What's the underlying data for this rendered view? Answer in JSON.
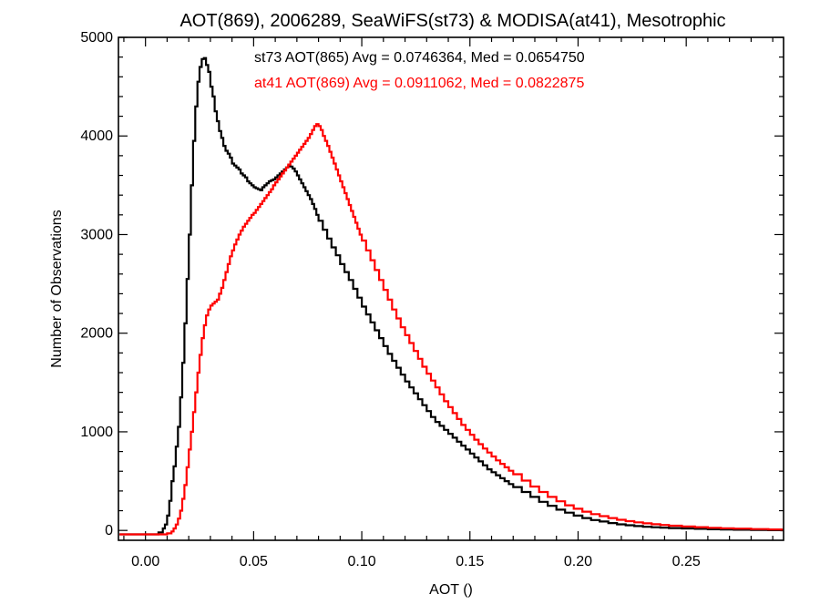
{
  "chart_data": {
    "type": "line",
    "title": "AOT(869), 2006289, SeaWiFS(st73) & MODISA(at41), Mesotrophic",
    "xlabel": "AOT ()",
    "ylabel": "Number of Observations",
    "xlim": [
      -0.0125,
      0.295
    ],
    "ylim": [
      -100,
      5000
    ],
    "xticks": [
      0.0,
      0.05,
      0.1,
      0.15,
      0.2,
      0.25
    ],
    "xtick_labels": [
      "0.00",
      "0.05",
      "0.10",
      "0.15",
      "0.20",
      "0.25"
    ],
    "yticks": [
      0,
      1000,
      2000,
      3000,
      4000,
      5000
    ],
    "ytick_labels": [
      "0",
      "1000",
      "2000",
      "3000",
      "4000",
      "5000"
    ],
    "annotations": [
      {
        "text": "st73 AOT(865) Avg = 0.0746364, Med = 0.0654750",
        "color": "#000000"
      },
      {
        "text": "at41 AOT(869) Avg = 0.0911062, Med = 0.0822875",
        "color": "#ff0000"
      }
    ],
    "series": [
      {
        "name": "st73",
        "color": "#000000",
        "points": [
          [
            -0.012,
            -40
          ],
          [
            0.004,
            -40
          ],
          [
            0.006,
            -20
          ],
          [
            0.008,
            20
          ],
          [
            0.009,
            60
          ],
          [
            0.01,
            150
          ],
          [
            0.011,
            300
          ],
          [
            0.012,
            500
          ],
          [
            0.013,
            650
          ],
          [
            0.014,
            850
          ],
          [
            0.015,
            1050
          ],
          [
            0.016,
            1350
          ],
          [
            0.017,
            1700
          ],
          [
            0.018,
            2100
          ],
          [
            0.019,
            2550
          ],
          [
            0.02,
            3000
          ],
          [
            0.021,
            3500
          ],
          [
            0.022,
            3950
          ],
          [
            0.023,
            4300
          ],
          [
            0.024,
            4550
          ],
          [
            0.025,
            4700
          ],
          [
            0.026,
            4780
          ],
          [
            0.027,
            4790
          ],
          [
            0.028,
            4720
          ],
          [
            0.029,
            4650
          ],
          [
            0.03,
            4500
          ],
          [
            0.031,
            4400
          ],
          [
            0.032,
            4250
          ],
          [
            0.033,
            4150
          ],
          [
            0.034,
            4050
          ],
          [
            0.035,
            3980
          ],
          [
            0.036,
            3900
          ],
          [
            0.037,
            3850
          ],
          [
            0.038,
            3820
          ],
          [
            0.039,
            3780
          ],
          [
            0.04,
            3720
          ],
          [
            0.041,
            3700
          ],
          [
            0.042,
            3680
          ],
          [
            0.043,
            3660
          ],
          [
            0.044,
            3620
          ],
          [
            0.045,
            3600
          ],
          [
            0.046,
            3580
          ],
          [
            0.047,
            3540
          ],
          [
            0.048,
            3520
          ],
          [
            0.049,
            3500
          ],
          [
            0.05,
            3480
          ],
          [
            0.051,
            3470
          ],
          [
            0.052,
            3460
          ],
          [
            0.053,
            3450
          ],
          [
            0.054,
            3480
          ],
          [
            0.055,
            3500
          ],
          [
            0.056,
            3520
          ],
          [
            0.057,
            3540
          ],
          [
            0.058,
            3550
          ],
          [
            0.059,
            3560
          ],
          [
            0.06,
            3580
          ],
          [
            0.061,
            3600
          ],
          [
            0.062,
            3620
          ],
          [
            0.063,
            3640
          ],
          [
            0.064,
            3660
          ],
          [
            0.065,
            3680
          ],
          [
            0.066,
            3700
          ],
          [
            0.067,
            3690
          ],
          [
            0.068,
            3670
          ],
          [
            0.069,
            3640
          ],
          [
            0.07,
            3600
          ],
          [
            0.071,
            3560
          ],
          [
            0.072,
            3520
          ],
          [
            0.073,
            3480
          ],
          [
            0.074,
            3440
          ],
          [
            0.075,
            3400
          ],
          [
            0.076,
            3360
          ],
          [
            0.077,
            3310
          ],
          [
            0.078,
            3260
          ],
          [
            0.079,
            3200
          ],
          [
            0.08,
            3140
          ],
          [
            0.082,
            3050
          ],
          [
            0.084,
            2960
          ],
          [
            0.086,
            2870
          ],
          [
            0.088,
            2790
          ],
          [
            0.09,
            2700
          ],
          [
            0.092,
            2620
          ],
          [
            0.094,
            2540
          ],
          [
            0.096,
            2450
          ],
          [
            0.098,
            2360
          ],
          [
            0.1,
            2270
          ],
          [
            0.102,
            2190
          ],
          [
            0.104,
            2110
          ],
          [
            0.106,
            2030
          ],
          [
            0.108,
            1950
          ],
          [
            0.11,
            1870
          ],
          [
            0.112,
            1790
          ],
          [
            0.114,
            1720
          ],
          [
            0.116,
            1650
          ],
          [
            0.118,
            1580
          ],
          [
            0.12,
            1510
          ],
          [
            0.122,
            1450
          ],
          [
            0.124,
            1390
          ],
          [
            0.126,
            1330
          ],
          [
            0.128,
            1270
          ],
          [
            0.13,
            1210
          ],
          [
            0.132,
            1150
          ],
          [
            0.134,
            1100
          ],
          [
            0.136,
            1060
          ],
          [
            0.138,
            1020
          ],
          [
            0.14,
            980
          ],
          [
            0.142,
            940
          ],
          [
            0.144,
            900
          ],
          [
            0.146,
            860
          ],
          [
            0.148,
            820
          ],
          [
            0.15,
            780
          ],
          [
            0.152,
            740
          ],
          [
            0.154,
            700
          ],
          [
            0.156,
            660
          ],
          [
            0.158,
            620
          ],
          [
            0.16,
            590
          ],
          [
            0.162,
            560
          ],
          [
            0.164,
            530
          ],
          [
            0.166,
            500
          ],
          [
            0.168,
            470
          ],
          [
            0.17,
            440
          ],
          [
            0.174,
            390
          ],
          [
            0.178,
            340
          ],
          [
            0.182,
            290
          ],
          [
            0.186,
            250
          ],
          [
            0.19,
            210
          ],
          [
            0.194,
            180
          ],
          [
            0.198,
            150
          ],
          [
            0.202,
            125
          ],
          [
            0.206,
            105
          ],
          [
            0.21,
            90
          ],
          [
            0.214,
            75
          ],
          [
            0.218,
            62
          ],
          [
            0.222,
            52
          ],
          [
            0.226,
            44
          ],
          [
            0.23,
            38
          ],
          [
            0.234,
            32
          ],
          [
            0.238,
            28
          ],
          [
            0.242,
            24
          ],
          [
            0.248,
            20
          ],
          [
            0.254,
            16
          ],
          [
            0.26,
            12
          ],
          [
            0.266,
            9
          ],
          [
            0.272,
            7
          ],
          [
            0.28,
            5
          ],
          [
            0.288,
            3
          ],
          [
            0.294,
            2
          ]
        ]
      },
      {
        "name": "at41",
        "color": "#ff0000",
        "points": [
          [
            -0.012,
            -40
          ],
          [
            0.008,
            -40
          ],
          [
            0.01,
            -30
          ],
          [
            0.012,
            -10
          ],
          [
            0.013,
            20
          ],
          [
            0.014,
            60
          ],
          [
            0.015,
            120
          ],
          [
            0.016,
            200
          ],
          [
            0.017,
            320
          ],
          [
            0.018,
            460
          ],
          [
            0.019,
            640
          ],
          [
            0.02,
            820
          ],
          [
            0.021,
            1000
          ],
          [
            0.022,
            1200
          ],
          [
            0.023,
            1400
          ],
          [
            0.024,
            1600
          ],
          [
            0.025,
            1780
          ],
          [
            0.026,
            1950
          ],
          [
            0.027,
            2080
          ],
          [
            0.028,
            2180
          ],
          [
            0.029,
            2240
          ],
          [
            0.03,
            2280
          ],
          [
            0.031,
            2300
          ],
          [
            0.032,
            2320
          ],
          [
            0.033,
            2340
          ],
          [
            0.034,
            2400
          ],
          [
            0.035,
            2460
          ],
          [
            0.036,
            2540
          ],
          [
            0.037,
            2620
          ],
          [
            0.038,
            2700
          ],
          [
            0.039,
            2780
          ],
          [
            0.04,
            2840
          ],
          [
            0.041,
            2900
          ],
          [
            0.042,
            2950
          ],
          [
            0.043,
            3000
          ],
          [
            0.044,
            3040
          ],
          [
            0.045,
            3080
          ],
          [
            0.046,
            3110
          ],
          [
            0.047,
            3140
          ],
          [
            0.048,
            3170
          ],
          [
            0.049,
            3200
          ],
          [
            0.05,
            3220
          ],
          [
            0.051,
            3250
          ],
          [
            0.052,
            3280
          ],
          [
            0.053,
            3310
          ],
          [
            0.054,
            3340
          ],
          [
            0.055,
            3370
          ],
          [
            0.056,
            3400
          ],
          [
            0.057,
            3430
          ],
          [
            0.058,
            3460
          ],
          [
            0.059,
            3500
          ],
          [
            0.06,
            3530
          ],
          [
            0.061,
            3560
          ],
          [
            0.062,
            3590
          ],
          [
            0.063,
            3620
          ],
          [
            0.064,
            3650
          ],
          [
            0.065,
            3680
          ],
          [
            0.066,
            3710
          ],
          [
            0.067,
            3740
          ],
          [
            0.068,
            3770
          ],
          [
            0.069,
            3800
          ],
          [
            0.07,
            3830
          ],
          [
            0.071,
            3860
          ],
          [
            0.072,
            3890
          ],
          [
            0.073,
            3920
          ],
          [
            0.074,
            3950
          ],
          [
            0.075,
            3980
          ],
          [
            0.076,
            4020
          ],
          [
            0.077,
            4060
          ],
          [
            0.078,
            4100
          ],
          [
            0.079,
            4120
          ],
          [
            0.08,
            4100
          ],
          [
            0.081,
            4060
          ],
          [
            0.082,
            4000
          ],
          [
            0.083,
            3950
          ],
          [
            0.084,
            3900
          ],
          [
            0.085,
            3840
          ],
          [
            0.086,
            3780
          ],
          [
            0.087,
            3720
          ],
          [
            0.088,
            3660
          ],
          [
            0.089,
            3600
          ],
          [
            0.09,
            3540
          ],
          [
            0.091,
            3480
          ],
          [
            0.092,
            3420
          ],
          [
            0.093,
            3360
          ],
          [
            0.094,
            3300
          ],
          [
            0.095,
            3240
          ],
          [
            0.096,
            3180
          ],
          [
            0.097,
            3120
          ],
          [
            0.098,
            3060
          ],
          [
            0.099,
            3000
          ],
          [
            0.1,
            2940
          ],
          [
            0.102,
            2840
          ],
          [
            0.104,
            2740
          ],
          [
            0.106,
            2640
          ],
          [
            0.108,
            2540
          ],
          [
            0.11,
            2440
          ],
          [
            0.112,
            2340
          ],
          [
            0.114,
            2240
          ],
          [
            0.116,
            2150
          ],
          [
            0.118,
            2060
          ],
          [
            0.12,
            1980
          ],
          [
            0.122,
            1900
          ],
          [
            0.124,
            1820
          ],
          [
            0.126,
            1740
          ],
          [
            0.128,
            1660
          ],
          [
            0.13,
            1590
          ],
          [
            0.132,
            1520
          ],
          [
            0.134,
            1450
          ],
          [
            0.136,
            1380
          ],
          [
            0.138,
            1310
          ],
          [
            0.14,
            1250
          ],
          [
            0.142,
            1190
          ],
          [
            0.144,
            1130
          ],
          [
            0.146,
            1070
          ],
          [
            0.148,
            1020
          ],
          [
            0.15,
            970
          ],
          [
            0.152,
            920
          ],
          [
            0.154,
            875
          ],
          [
            0.156,
            830
          ],
          [
            0.158,
            790
          ],
          [
            0.16,
            750
          ],
          [
            0.162,
            710
          ],
          [
            0.164,
            675
          ],
          [
            0.166,
            640
          ],
          [
            0.168,
            605
          ],
          [
            0.17,
            570
          ],
          [
            0.174,
            505
          ],
          [
            0.178,
            445
          ],
          [
            0.182,
            390
          ],
          [
            0.186,
            340
          ],
          [
            0.19,
            295
          ],
          [
            0.194,
            255
          ],
          [
            0.198,
            220
          ],
          [
            0.202,
            190
          ],
          [
            0.206,
            165
          ],
          [
            0.21,
            145
          ],
          [
            0.214,
            125
          ],
          [
            0.218,
            108
          ],
          [
            0.222,
            94
          ],
          [
            0.226,
            82
          ],
          [
            0.23,
            72
          ],
          [
            0.234,
            63
          ],
          [
            0.238,
            55
          ],
          [
            0.242,
            48
          ],
          [
            0.248,
            40
          ],
          [
            0.254,
            33
          ],
          [
            0.26,
            27
          ],
          [
            0.266,
            22
          ],
          [
            0.272,
            18
          ],
          [
            0.28,
            14
          ],
          [
            0.288,
            10
          ],
          [
            0.294,
            8
          ]
        ]
      }
    ]
  }
}
